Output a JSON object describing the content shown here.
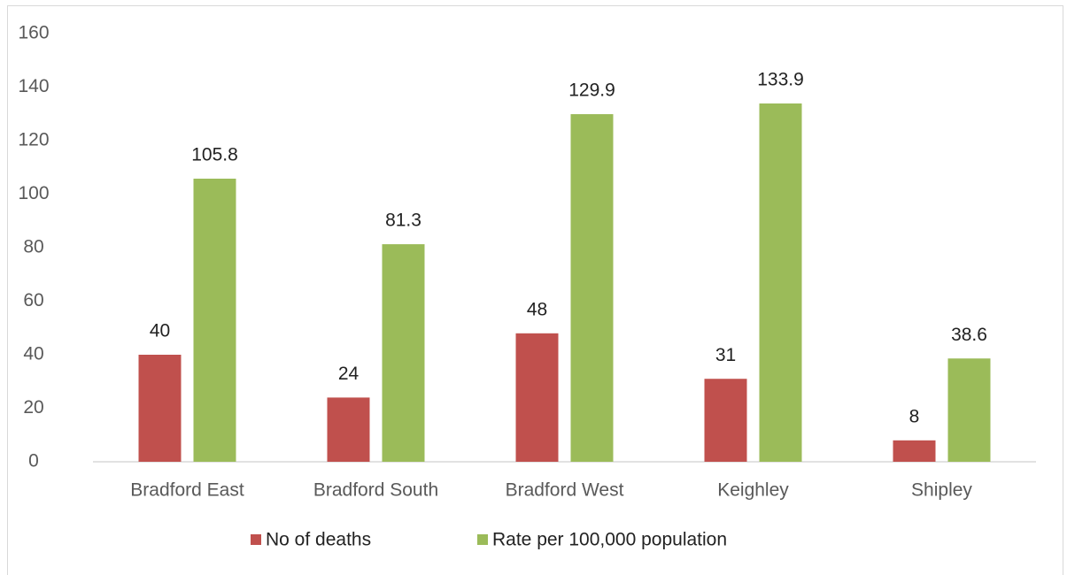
{
  "chart_data": {
    "type": "bar",
    "categories": [
      "Bradford East",
      "Bradford South",
      "Bradford West",
      "Keighley",
      "Shipley"
    ],
    "series": [
      {
        "name": "No of deaths",
        "color": "#c0504d",
        "values": [
          40,
          24,
          48,
          31,
          8
        ]
      },
      {
        "name": "Rate per 100,000 population",
        "color": "#9bbb59",
        "values": [
          105.8,
          81.3,
          129.9,
          133.9,
          38.6
        ]
      }
    ],
    "ylim": [
      0,
      160
    ],
    "yticks": [
      0,
      20,
      40,
      60,
      80,
      100,
      120,
      140,
      160
    ],
    "grid": false,
    "legend": "bottom"
  }
}
